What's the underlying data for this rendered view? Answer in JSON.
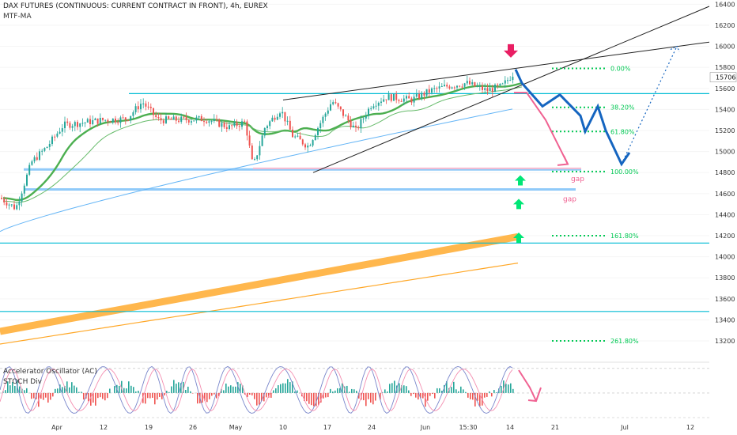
{
  "header": {
    "title": "DAX FUTURES (CONTINUOUS: CURRENT CONTRACT IN FRONT), 4h, EUREX",
    "indicator": "MTF-MA"
  },
  "sub_panel": {
    "title": "Accelerator Oscillator (AC)",
    "title2": "STOCH Div"
  },
  "colors": {
    "candle_up": "#26a69a",
    "candle_down": "#ef5350",
    "ma_fast": "#66bb6a",
    "ma_slow": "#4caf50",
    "ma_long": "#64b5f6",
    "band": "#ffb74d",
    "band_thin": "#ffa726",
    "level_line": "#00bcd4",
    "gap_line": "#90caf9",
    "fib": "#00c853",
    "projection": "#1565c0",
    "pink": "#f06292",
    "arrow_green": "#00e676",
    "wedge": "#222222",
    "price_tag": "#ffffff",
    "stoch": "#7986cb"
  },
  "chart_data": {
    "type": "candlestick",
    "title": "DAX FUTURES (CONTINUOUS: CURRENT CONTRACT IN FRONT), 4h, EUREX",
    "y_axis": {
      "ylim": [
        13020,
        16440
      ],
      "ticks": [
        16400,
        16200,
        16000,
        15800,
        15600,
        15400,
        15200,
        15000,
        14800,
        14600,
        14400,
        14200,
        14000,
        13800,
        13600,
        13400,
        13200
      ]
    },
    "x_axis": {
      "ticks": [
        "Apr",
        "12",
        "19",
        "26",
        "May",
        "10",
        "17",
        "24",
        "Jun",
        "15:30",
        "14",
        "21",
        "Jul",
        "12"
      ]
    },
    "last_price": "15706",
    "horizontal_levels": [
      15550,
      14830,
      14640,
      14130,
      13480
    ],
    "gap_labels": [
      "gap",
      "gap"
    ],
    "fibonacci": [
      {
        "label": "0.00%",
        "value": 15790
      },
      {
        "label": "38.20%",
        "value": 15420
      },
      {
        "label": "61.80%",
        "value": 15190
      },
      {
        "label": "100.00%",
        "value": 14810
      },
      {
        "label": "161.80%",
        "value": 14200
      },
      {
        "label": "261.80%",
        "value": 13200
      }
    ],
    "projection_path": [
      15780,
      15650,
      15430,
      15540,
      15340,
      15190,
      15430,
      15200,
      14880,
      14990
    ],
    "projection_dotted_target": 16000,
    "pink_path": [
      15560,
      15560,
      15300,
      14880
    ],
    "oscillator": {
      "name": "Accelerator Oscillator (AC)",
      "ticks": [
        80,
        40,
        0
      ],
      "pink_arrow_direction": "down"
    }
  }
}
